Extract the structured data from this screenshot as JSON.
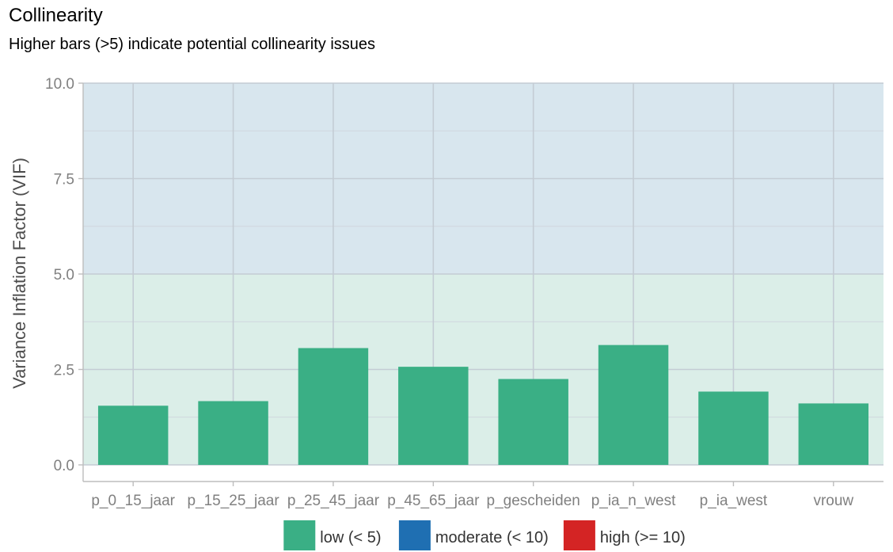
{
  "chart_data": {
    "type": "bar",
    "title": "Collinearity",
    "subtitle": "Higher bars (>5) indicate potential collinearity issues",
    "ylabel": "Variance Inflation Factor (VIF)",
    "xlabel": "",
    "categories": [
      "p_0_15_jaar",
      "p_15_25_jaar",
      "p_25_45_jaar",
      "p_45_65_jaar",
      "p_gescheiden",
      "p_ia_n_west",
      "p_ia_west",
      "vrouw"
    ],
    "values": [
      1.55,
      1.67,
      3.06,
      2.57,
      2.25,
      3.14,
      1.92,
      1.61
    ],
    "ylim": [
      0,
      10
    ],
    "yticks": [
      0.0,
      2.5,
      5.0,
      7.5,
      10.0
    ],
    "ytick_labels": [
      "0.0",
      "2.5",
      "5.0",
      "7.5",
      "10.0"
    ],
    "bands": [
      {
        "from": 0,
        "to": 5,
        "color": "#dbeee8"
      },
      {
        "from": 5,
        "to": 10,
        "color": "#d8e6ee"
      }
    ],
    "grid": true,
    "legend_position": "bottom",
    "legend": [
      {
        "label": "low (< 5)",
        "color": "#3aaf85"
      },
      {
        "label": "moderate (< 10)",
        "color": "#1f6fb2"
      },
      {
        "label": "high (>= 10)",
        "color": "#d42424"
      }
    ],
    "bar_color": "#3aaf85"
  }
}
